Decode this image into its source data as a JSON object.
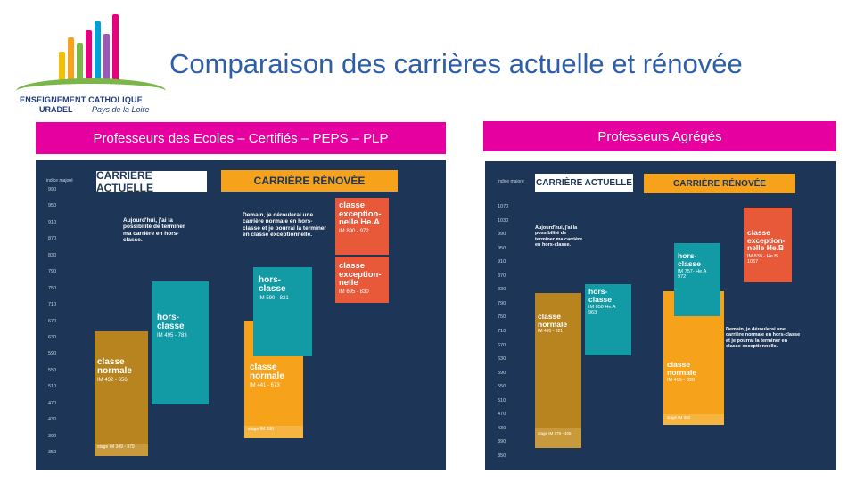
{
  "title": "Comparaison des carrières actuelle et rénovée",
  "logo": {
    "line1": "ENSEIGNEMENT CATHOLIQUE",
    "line2": "URADEL",
    "line3": "Pays de la Loire"
  },
  "colors": {
    "title": "#2f5ea8",
    "banner": "#e600a0",
    "panel": "#1d3557",
    "normale_actuelle": "#b8841f",
    "normale_renovee": "#f6a31b",
    "hors_classe": "#129aa5",
    "exceptionnelle": "#e8593a"
  },
  "left": {
    "banner": "Professeurs des Ecoles – Certifiés – PEPS – PLP",
    "axis_label": "indice majoré",
    "ticks": [
      "990",
      "950",
      "910",
      "870",
      "830",
      "790",
      "750",
      "710",
      "670",
      "630",
      "590",
      "550",
      "510",
      "470",
      "430",
      "390",
      "350"
    ],
    "header_actuelle": "CARRIÈRE ACTUELLE",
    "header_renovee": "CARRIÈRE RÉNOVÉE",
    "note_actuelle": "Aujourd'hui, j'ai la possibilité de terminer ma carrière en hors-classe.",
    "note_renovee": "Demain, je déroulerai une carrière normale en hors-classe et je pourrai la terminer en classe exceptionnelle.",
    "blocks": {
      "act_normale_name": "classe normale",
      "act_normale_im": "IM 432 - 656",
      "act_stage": "stage IM 349 - 379",
      "act_hors_name": "hors-classe",
      "act_hors_im": "IM 495 - 783",
      "ren_normale_name": "classe normale",
      "ren_normale_im": "IM 441 - 673",
      "ren_stage": "stage IM 390",
      "ren_hors_name": "hors-classe",
      "ren_hors_im": "IM 590 - 821",
      "ren_exc1_name": "classe exception-nelle He.A",
      "ren_exc1_im": "IM 890 - 972",
      "ren_exc2_name": "classe exception-nelle",
      "ren_exc2_im": "IM 695 - 830"
    }
  },
  "right": {
    "banner": "Professeurs Agrégés",
    "axis_label": "indice majoré",
    "ticks": [
      "1070",
      "1030",
      "990",
      "950",
      "910",
      "870",
      "830",
      "790",
      "750",
      "710",
      "670",
      "630",
      "590",
      "550",
      "510",
      "470",
      "430",
      "390",
      "350"
    ],
    "header_actuelle": "CARRIÈRE ACTUELLE",
    "header_renovee": "CARRIÈRE RÉNOVÉE",
    "note_actuelle": "Aujourd'hui, j'ai la possibilité de terminer ma carrière en hors-classe.",
    "note_renovee": "Demain, je déroulerai une carrière normale en hors-classe et je pourrai la terminer en classe exceptionnelle.",
    "blocks": {
      "act_normale_name": "classe normale",
      "act_normale_im": "IM 495 - 821",
      "act_stage": "stage IM 379 - 405",
      "act_hors_name": "hors-classe",
      "act_hors_im": "IM 658 He.A 963",
      "ren_normale_name": "classe normale",
      "ren_normale_im": "IM 495 - 830",
      "ren_stage": "stage IM 450",
      "ren_hors_name": "hors-classe",
      "ren_hors_im": "IM 757- He.A 972",
      "ren_exc_name": "classe exception-nelle He.B",
      "ren_exc_im": "IM 830 - He.B 1067"
    }
  }
}
